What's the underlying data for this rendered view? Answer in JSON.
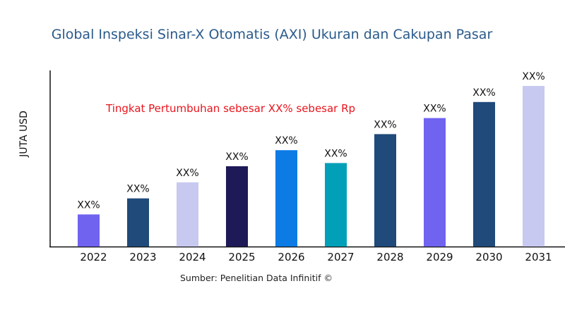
{
  "chart_data": {
    "type": "bar",
    "title": "Global Inspeksi Sinar-X Otomatis (AXI) Ukuran dan Cakupan Pasar",
    "xlabel": "",
    "ylabel": "JUTA USD",
    "categories": [
      "2022",
      "2023",
      "2024",
      "2025",
      "2026",
      "2027",
      "2028",
      "2029",
      "2030",
      "2031"
    ],
    "values": [
      20,
      30,
      40,
      50,
      60,
      52,
      70,
      80,
      90,
      100
    ],
    "data_labels": [
      "XX%",
      "XX%",
      "XX%",
      "XX%",
      "XX%",
      "XX%",
      "XX%",
      "XX%",
      "XX%",
      "XX%"
    ],
    "colors": [
      "#7063f0",
      "#1f4a7a",
      "#c8c9f0",
      "#1e1a58",
      "#0c7be4",
      "#02a0b8",
      "#1f4a7a",
      "#7063f0",
      "#1f4a7a",
      "#c8c9f0"
    ],
    "ylim": [
      0,
      100
    ],
    "grid": false,
    "annotation": "Tingkat Pertumbuhan sebesar XX% sebesar Rp",
    "source": "Sumber: Penelitian Data Infinitif ©"
  }
}
